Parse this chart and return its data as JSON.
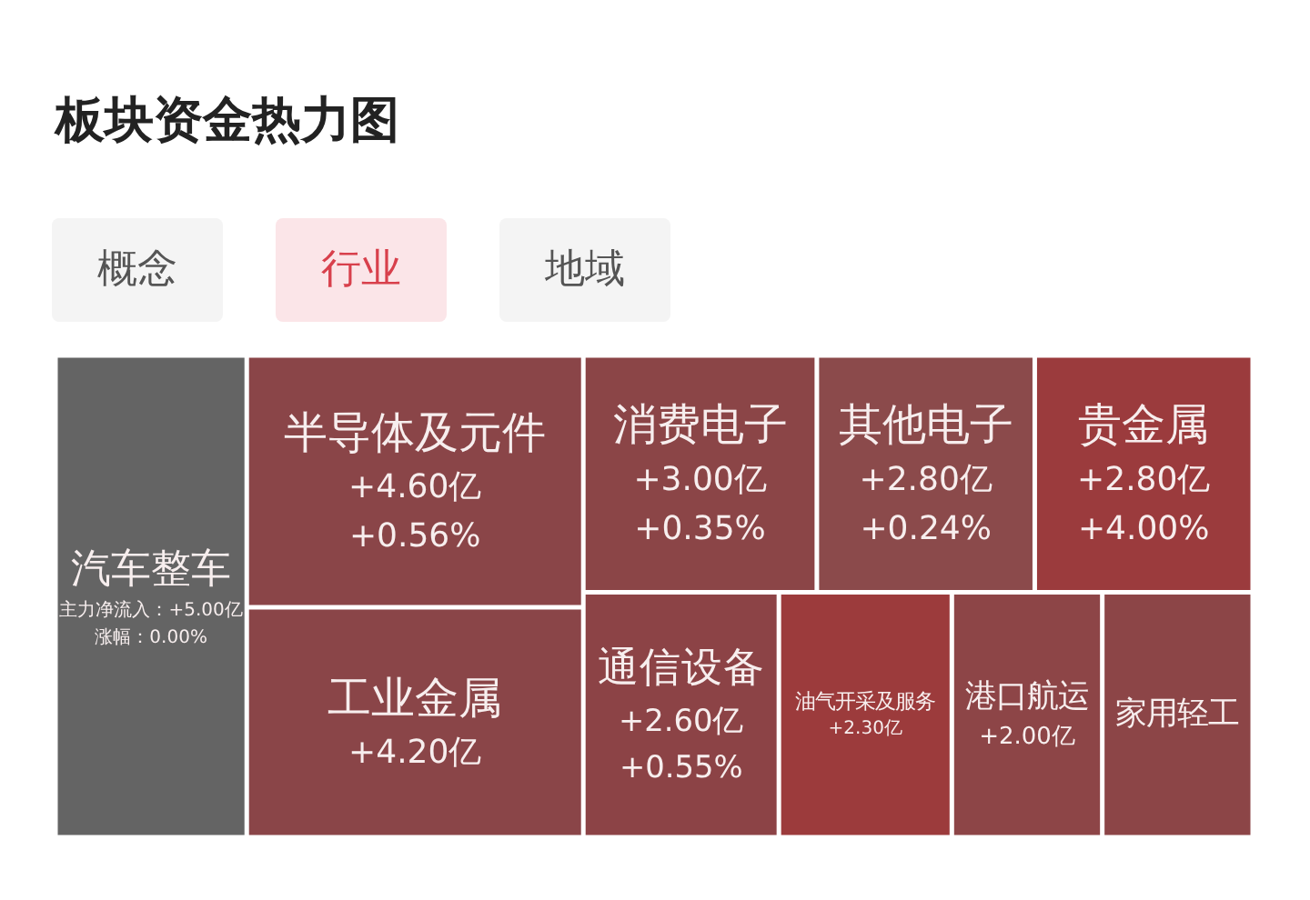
{
  "chart_data": {
    "type": "other",
    "title": "板块资金热力图",
    "annotations": [
      "概念",
      "行业",
      "地域"
    ],
    "categories": [
      "汽车整车",
      "半导体及元件",
      "工业金属",
      "消费电子",
      "其他电子",
      "贵金属",
      "通信设备",
      "油气开采及服务",
      "港口航运",
      "家用轻工"
    ],
    "series": [
      {
        "values": [
          5.0,
          4.6,
          4.2,
          3.0,
          2.8,
          2.8,
          2.6,
          2.3,
          2.0,
          null
        ],
        "value_labels": [
          "主力净流入：+5.00亿",
          "+4.60亿",
          "+4.20亿",
          "+3.00亿",
          "+2.80亿",
          "+2.80亿",
          "+2.60亿",
          "+2.30亿",
          "+2.00亿",
          null
        ],
        "colors": [
          "#646464",
          "#8a4548",
          "#8a4548",
          "#8b4547",
          "#8b4a4b",
          "#9b3b3d",
          "#8c4346",
          "#9c3b3c",
          "#8d4547",
          "#8c4547"
        ]
      },
      {
        "values": [
          0.0,
          0.56,
          null,
          0.35,
          0.24,
          4.0,
          0.55,
          null,
          null,
          null
        ],
        "value_labels": [
          "涨幅：0.00%",
          "+0.56%",
          null,
          "+0.35%",
          "+0.24%",
          "+4.00%",
          "+0.55%",
          null,
          null,
          null
        ]
      }
    ]
  }
}
